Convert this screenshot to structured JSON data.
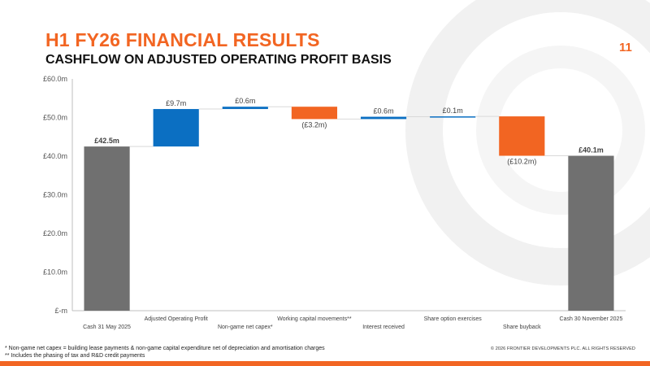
{
  "header": {
    "title": "H1 FY26 FINANCIAL RESULTS",
    "subtitle": "CASHFLOW ON ADJUSTED OPERATING PROFIT BASIS",
    "page_number": "11"
  },
  "colors": {
    "accent": "#f26522",
    "increase": "#0b6fc2",
    "decrease": "#f26522",
    "total": "#707070",
    "axis_text": "#555555"
  },
  "chart_data": {
    "type": "bar",
    "subtype": "waterfall",
    "title": "",
    "xlabel": "",
    "ylabel": "",
    "ylim": [
      0,
      60
    ],
    "yticks": [
      0,
      10,
      20,
      30,
      40,
      50,
      60
    ],
    "ytick_labels": [
      "£-m",
      "£10.0m",
      "£20.0m",
      "£30.0m",
      "£40.0m",
      "£50.0m",
      "£60.0m"
    ],
    "grid": false,
    "legend": "none",
    "steps": [
      {
        "category": "Cash 31 May 2025",
        "kind": "total",
        "value": 42.5,
        "label": "£42.5m"
      },
      {
        "category": "Adjusted Operating Profit",
        "kind": "increase",
        "value": 9.7,
        "label": "£9.7m"
      },
      {
        "category": "Non-game net capex*",
        "kind": "increase",
        "value": 0.6,
        "label": "£0.6m"
      },
      {
        "category": "Working capital movements**",
        "kind": "decrease",
        "value": -3.2,
        "label": "(£3.2m)"
      },
      {
        "category": "Interest received",
        "kind": "increase",
        "value": 0.6,
        "label": "£0.6m"
      },
      {
        "category": "Share option exercises",
        "kind": "increase",
        "value": 0.1,
        "label": "£0.1m"
      },
      {
        "category": "Share buyback",
        "kind": "decrease",
        "value": -10.2,
        "label": "(£10.2m)"
      },
      {
        "category": "Cash 30 November 2025",
        "kind": "total",
        "value": 40.1,
        "label": "£40.1m"
      }
    ]
  },
  "footnotes": {
    "note1": "* Non-game net capex = building lease payments & non-game capital expenditure net of depreciation and amortisation charges",
    "note2": "** Includes the phasing of tax and R&D credit payments",
    "copyright": "© 2026 FRONTIER DEVELOPMENTS PLC. ALL RIGHTS RESERVED"
  }
}
